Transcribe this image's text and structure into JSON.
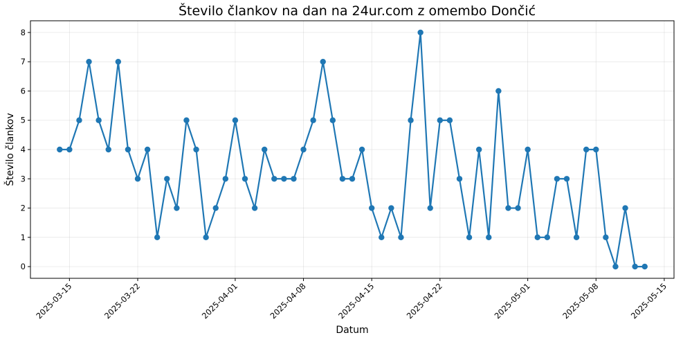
{
  "chart_data": {
    "type": "line",
    "title": "Število člankov na dan na 24ur.com z omembo Dončić",
    "xlabel": "Datum",
    "ylabel": "Število člankov",
    "color": "#1f77b4",
    "grid": true,
    "x_start": "2025-03-14",
    "x_ticks": [
      "2025-03-15",
      "2025-03-22",
      "2025-04-01",
      "2025-04-08",
      "2025-04-15",
      "2025-04-22",
      "2025-05-01",
      "2025-05-08",
      "2025-05-15"
    ],
    "y_ticks": [
      0,
      1,
      2,
      3,
      4,
      5,
      6,
      7,
      8
    ],
    "ylim": [
      -0.4,
      8.4
    ],
    "xlim": [
      "2025-03-11",
      "2025-05-16"
    ],
    "series": [
      {
        "dates": [
          "2025-03-14",
          "2025-03-15",
          "2025-03-16",
          "2025-03-17",
          "2025-03-18",
          "2025-03-19",
          "2025-03-20",
          "2025-03-21",
          "2025-03-22",
          "2025-03-23",
          "2025-03-24",
          "2025-03-25",
          "2025-03-26",
          "2025-03-27",
          "2025-03-28",
          "2025-03-29",
          "2025-03-30",
          "2025-03-31",
          "2025-04-01",
          "2025-04-02",
          "2025-04-03",
          "2025-04-04",
          "2025-04-05",
          "2025-04-06",
          "2025-04-07",
          "2025-04-08",
          "2025-04-09",
          "2025-04-10",
          "2025-04-11",
          "2025-04-12",
          "2025-04-13",
          "2025-04-14",
          "2025-04-15",
          "2025-04-16",
          "2025-04-17",
          "2025-04-18",
          "2025-04-19",
          "2025-04-20",
          "2025-04-21",
          "2025-04-22",
          "2025-04-23",
          "2025-04-24",
          "2025-04-25",
          "2025-04-26",
          "2025-04-27",
          "2025-04-28",
          "2025-04-29",
          "2025-04-30",
          "2025-05-01",
          "2025-05-02",
          "2025-05-03",
          "2025-05-04",
          "2025-05-05",
          "2025-05-06",
          "2025-05-07",
          "2025-05-08",
          "2025-05-09",
          "2025-05-10",
          "2025-05-11",
          "2025-05-12",
          "2025-05-13"
        ],
        "values": [
          4,
          4,
          5,
          7,
          5,
          4,
          7,
          4,
          3,
          4,
          1,
          3,
          2,
          5,
          4,
          1,
          2,
          3,
          5,
          3,
          2,
          4,
          3,
          3,
          3,
          4,
          5,
          7,
          5,
          3,
          3,
          4,
          2,
          1,
          2,
          1,
          5,
          8,
          2,
          5,
          5,
          3,
          1,
          4,
          1,
          6,
          2,
          2,
          4,
          1,
          1,
          3,
          3,
          1,
          4,
          4,
          1,
          0,
          2,
          0,
          0
        ]
      }
    ]
  }
}
